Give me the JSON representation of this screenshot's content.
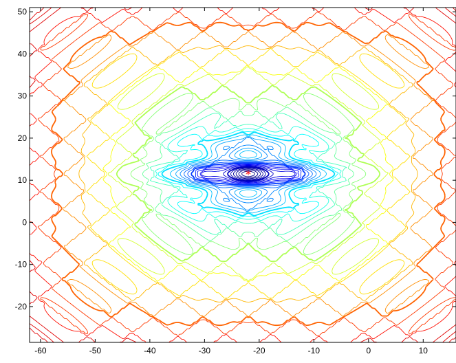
{
  "chart_data": {
    "type": "contour",
    "title": "",
    "xlabel": "",
    "ylabel": "",
    "xlim": [
      -62,
      16
    ],
    "ylim": [
      -28.5,
      51
    ],
    "xticks": [
      -60,
      -50,
      -40,
      -30,
      -20,
      -10,
      0,
      10
    ],
    "yticks": [
      -20,
      -10,
      0,
      10,
      20,
      30,
      40,
      50
    ],
    "xtick_labels": [
      "-60",
      "-50",
      "-40",
      "-30",
      "-20",
      "-10",
      "0",
      "10"
    ],
    "ytick_labels": [
      "-20",
      "-10",
      "0",
      "10",
      "20",
      "30",
      "40",
      "50"
    ],
    "grid": false,
    "colormap": "jet",
    "marker": {
      "x": -22,
      "y": 11.5,
      "symbol": "*",
      "color": "#ff0000"
    }
  }
}
